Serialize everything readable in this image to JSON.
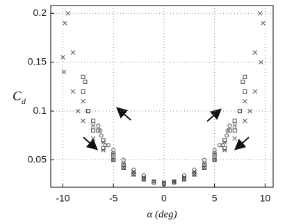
{
  "chart_data": {
    "type": "scatter",
    "xlabel": "α (deg)",
    "ylabel": "C",
    "ylabel_sub": "d",
    "xlim": [
      -11.2,
      10.8
    ],
    "xticks": [
      -10,
      -5,
      0,
      5,
      10
    ],
    "ylim": [
      0.022,
      0.208
    ],
    "yticks": [
      0.05,
      0.1,
      0.15,
      0.2
    ],
    "grid": true,
    "series": [
      {
        "marker": "x",
        "color": "#555555",
        "x": [
          0,
          1,
          2,
          3,
          4,
          5,
          6,
          7,
          8,
          9,
          9.5,
          9.8,
          9.6,
          9,
          8.5,
          8,
          7,
          6,
          5,
          4,
          3,
          2,
          1,
          -1,
          -2,
          -3,
          -4,
          -5,
          -6,
          -7,
          -8,
          -9,
          -9.5,
          -9.8,
          -10,
          -9.9,
          -9,
          -8.5,
          -8,
          -7,
          -6,
          -5,
          -4,
          -3,
          -2
        ],
        "values": [
          0.027,
          0.028,
          0.032,
          0.038,
          0.046,
          0.056,
          0.068,
          0.085,
          0.11,
          0.16,
          0.2,
          0.19,
          0.15,
          0.12,
          0.1,
          0.09,
          0.072,
          0.06,
          0.05,
          0.042,
          0.035,
          0.03,
          0.027,
          0.028,
          0.032,
          0.038,
          0.046,
          0.056,
          0.068,
          0.085,
          0.11,
          0.16,
          0.2,
          0.19,
          0.155,
          0.14,
          0.12,
          0.1,
          0.09,
          0.072,
          0.06,
          0.05,
          0.042,
          0.035,
          0.03
        ]
      },
      {
        "marker": "square",
        "color": "#444444",
        "x": [
          0,
          2,
          4,
          5,
          6,
          7,
          7.5,
          7.8,
          8,
          8,
          7.5,
          7,
          6.5,
          6,
          5,
          4,
          3,
          1,
          -1,
          -3,
          -4,
          -5,
          -6,
          -7,
          -7.5,
          -7.8,
          -8,
          -8,
          -7.5,
          -7,
          -6.5,
          -6,
          -5,
          -4,
          -2
        ],
        "values": [
          0.026,
          0.031,
          0.042,
          0.05,
          0.062,
          0.08,
          0.1,
          0.13,
          0.135,
          0.12,
          0.1,
          0.09,
          0.08,
          0.07,
          0.055,
          0.045,
          0.036,
          0.027,
          0.027,
          0.036,
          0.045,
          0.055,
          0.07,
          0.08,
          0.1,
          0.13,
          0.135,
          0.12,
          0.1,
          0.09,
          0.08,
          0.062,
          0.05,
          0.042,
          0.031
        ]
      },
      {
        "marker": "circle",
        "color": "#444444",
        "x": [
          0,
          2,
          3,
          4,
          5,
          5.8,
          6.3,
          6.5,
          6.2,
          5.5,
          5,
          4,
          3,
          2,
          1,
          -1,
          -2,
          -3,
          -4,
          -5,
          -5.5,
          -6.2,
          -6.5,
          -6.3,
          -5.8,
          -5,
          -4,
          -3,
          -2
        ],
        "values": [
          0.025,
          0.03,
          0.035,
          0.042,
          0.05,
          0.065,
          0.08,
          0.085,
          0.075,
          0.065,
          0.06,
          0.05,
          0.04,
          0.034,
          0.028,
          0.028,
          0.034,
          0.04,
          0.05,
          0.06,
          0.065,
          0.075,
          0.085,
          0.08,
          0.065,
          0.05,
          0.042,
          0.035,
          0.03
        ]
      }
    ]
  }
}
